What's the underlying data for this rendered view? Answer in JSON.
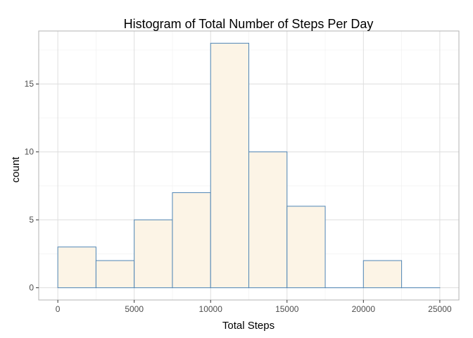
{
  "chart_data": {
    "type": "bar",
    "title": "Histogram of Total Number of Steps Per Day",
    "xlabel": "Total Steps",
    "ylabel": "count",
    "xlim": [
      -1250,
      26250
    ],
    "ylim": [
      -0.9,
      18.9
    ],
    "x_ticks": [
      0,
      5000,
      10000,
      15000,
      20000,
      25000
    ],
    "x_tick_labels": [
      "0",
      "5000",
      "10000",
      "15000",
      "20000",
      "25000"
    ],
    "y_ticks": [
      0,
      5,
      10,
      15
    ],
    "y_tick_labels": [
      "0",
      "5",
      "10",
      "15"
    ],
    "binwidth": 2500,
    "bins": [
      {
        "x_start": 0,
        "x_end": 2500,
        "count": 3
      },
      {
        "x_start": 2500,
        "x_end": 5000,
        "count": 2
      },
      {
        "x_start": 5000,
        "x_end": 7500,
        "count": 5
      },
      {
        "x_start": 7500,
        "x_end": 10000,
        "count": 7
      },
      {
        "x_start": 10000,
        "x_end": 12500,
        "count": 18
      },
      {
        "x_start": 12500,
        "x_end": 15000,
        "count": 10
      },
      {
        "x_start": 15000,
        "x_end": 17500,
        "count": 6
      },
      {
        "x_start": 17500,
        "x_end": 20000,
        "count": 0
      },
      {
        "x_start": 20000,
        "x_end": 22500,
        "count": 2
      },
      {
        "x_start": 22500,
        "x_end": 25000,
        "count": 0
      }
    ],
    "grid": true,
    "bar_fill": "#fcf4e6",
    "bar_stroke": "#4f85b5",
    "panel_border": "#b3b3b3",
    "grid_major_color": "#dedede",
    "grid_minor_color": "#efefef"
  }
}
